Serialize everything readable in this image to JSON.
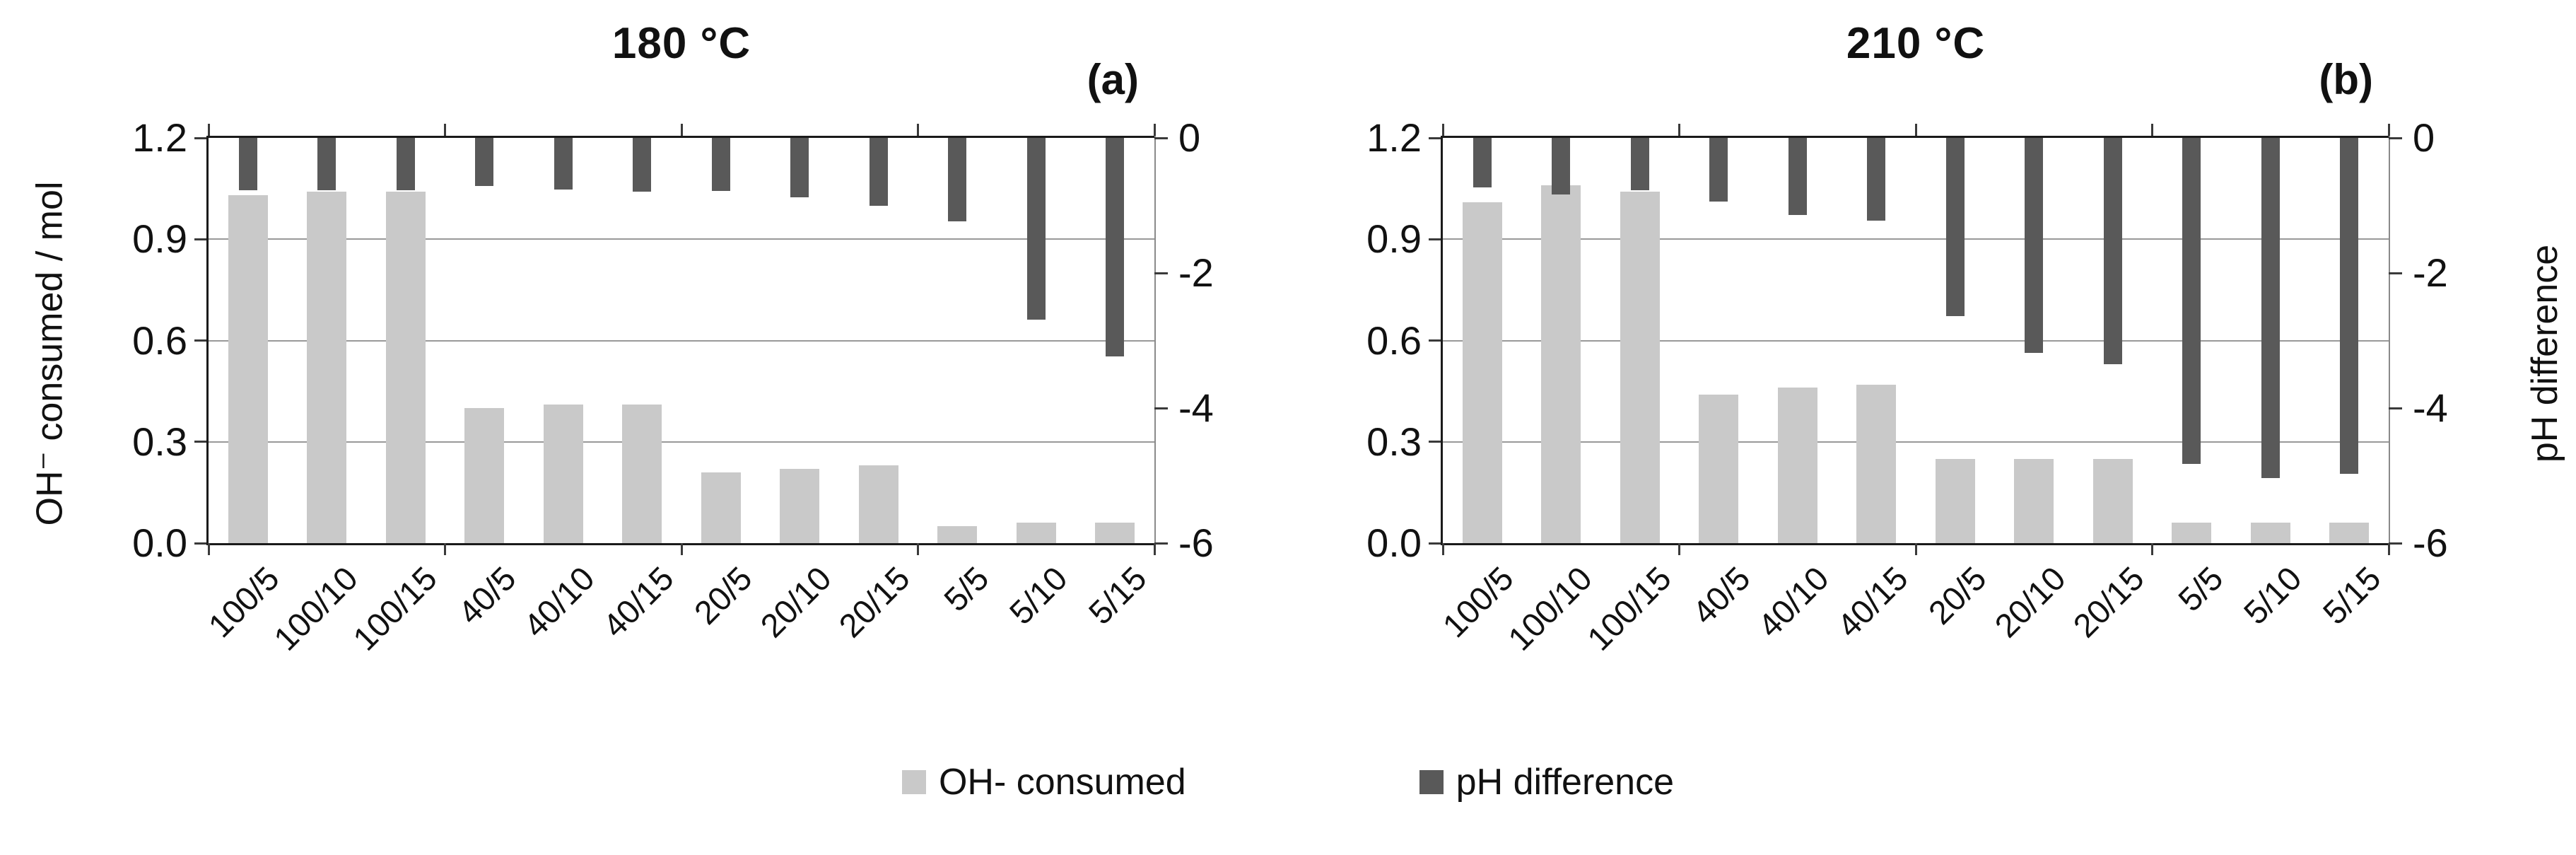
{
  "chart_data": [
    {
      "type": "bar",
      "title": "180 °C",
      "panel_label": "(a)",
      "categories": [
        "100/5",
        "100/10",
        "100/15",
        "40/5",
        "40/10",
        "40/15",
        "20/5",
        "20/10",
        "20/15",
        "5/5",
        "5/10",
        "5/15"
      ],
      "series": [
        {
          "name": "OH- consumed",
          "axis": "left",
          "color": "#c9c9c9",
          "values": [
            1.03,
            1.04,
            1.04,
            0.4,
            0.41,
            0.41,
            0.21,
            0.22,
            0.23,
            0.05,
            0.06,
            0.06
          ]
        },
        {
          "name": "pH difference",
          "axis": "right",
          "color": "#595959",
          "values": [
            -0.78,
            -0.77,
            -0.78,
            -0.71,
            -0.76,
            -0.8,
            -0.79,
            -0.88,
            -1.01,
            -1.24,
            -2.69,
            -3.24
          ]
        }
      ],
      "ylabel_left": "OH⁻ consumed / mol",
      "ylabel_right": "",
      "ylim_left": [
        0,
        1.2
      ],
      "ylim_right": [
        -6,
        0
      ],
      "yticks_left": [
        "1.2",
        "0.9",
        "0.6",
        "0.3",
        "0.0"
      ],
      "yticks_left_values": [
        1.2,
        0.9,
        0.6,
        0.3,
        0.0
      ],
      "yticks_right": [
        "0",
        "-2",
        "-4",
        "-6"
      ],
      "yticks_right_values": [
        0,
        -2,
        -4,
        -6
      ],
      "gridline_values_left": [
        0.9,
        0.6,
        0.3
      ],
      "grid": "horizontal only",
      "legend_position": "bottom"
    },
    {
      "type": "bar",
      "title": "210 °C",
      "panel_label": "(b)",
      "categories": [
        "100/5",
        "100/10",
        "100/15",
        "40/5",
        "40/10",
        "40/15",
        "20/5",
        "20/10",
        "20/15",
        "5/5",
        "5/10",
        "5/15"
      ],
      "series": [
        {
          "name": "OH- consumed",
          "axis": "left",
          "color": "#c9c9c9",
          "values": [
            1.01,
            1.06,
            1.04,
            0.44,
            0.46,
            0.47,
            0.25,
            0.25,
            0.25,
            0.06,
            0.06,
            0.06
          ]
        },
        {
          "name": "pH difference",
          "axis": "right",
          "color": "#595959",
          "values": [
            -0.73,
            -0.84,
            -0.78,
            -0.94,
            -1.14,
            -1.23,
            -2.64,
            -3.18,
            -3.35,
            -4.83,
            -5.04,
            -4.97
          ]
        }
      ],
      "ylabel_left": "",
      "ylabel_right": "pH difference",
      "ylim_left": [
        0,
        1.2
      ],
      "ylim_right": [
        -6,
        0
      ],
      "yticks_left": [
        "1.2",
        "0.9",
        "0.6",
        "0.3",
        "0.0"
      ],
      "yticks_left_values": [
        1.2,
        0.9,
        0.6,
        0.3,
        0.0
      ],
      "yticks_right": [
        "0",
        "-2",
        "-4",
        "-6"
      ],
      "yticks_right_values": [
        0,
        -2,
        -4,
        -6
      ],
      "gridline_values_left": [
        0.9,
        0.6,
        0.3
      ],
      "grid": "horizontal only",
      "legend_position": "bottom"
    }
  ],
  "legend": {
    "items": [
      {
        "label": "OH- consumed",
        "color": "#c9c9c9"
      },
      {
        "label": "pH difference",
        "color": "#595959"
      }
    ]
  },
  "colors": {
    "background": "#ffffff",
    "axis": "#1a1a1a",
    "gridline": "#999999",
    "light_bar": "#c9c9c9",
    "dark_bar": "#595959"
  }
}
